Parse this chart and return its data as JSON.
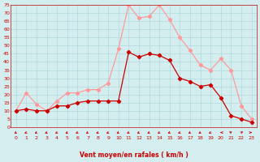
{
  "xlabel": "Vent moyen/en rafales ( km/h )",
  "hours": [
    0,
    1,
    2,
    3,
    4,
    5,
    6,
    7,
    8,
    9,
    10,
    11,
    12,
    13,
    14,
    15,
    16,
    17,
    18,
    19,
    20,
    21,
    22,
    23
  ],
  "wind_avg": [
    10,
    11,
    10,
    10,
    13,
    13,
    15,
    16,
    16,
    16,
    16,
    46,
    43,
    45,
    44,
    41,
    30,
    28,
    25,
    26,
    18,
    7,
    5,
    3
  ],
  "wind_gust": [
    10,
    21,
    14,
    10,
    16,
    21,
    21,
    23,
    23,
    27,
    48,
    75,
    67,
    68,
    75,
    66,
    55,
    47,
    38,
    35,
    42,
    35,
    13,
    5
  ],
  "wind_dirs": [
    225,
    225,
    225,
    225,
    225,
    225,
    225,
    225,
    225,
    225,
    225,
    225,
    225,
    225,
    225,
    225,
    225,
    225,
    225,
    225,
    270,
    315,
    45,
    90
  ],
  "ylim": [
    0,
    75
  ],
  "yticks": [
    0,
    5,
    10,
    15,
    20,
    25,
    30,
    35,
    40,
    45,
    50,
    55,
    60,
    65,
    70,
    75
  ],
  "bg_color": "#d4eef0",
  "grid_color": "#b0d8dc",
  "line_avg_color": "#cc0000",
  "line_gust_color": "#ff9999",
  "tick_label_color": "#cc0000",
  "xlabel_color": "#cc0000",
  "arrow_color": "#cc0000",
  "spine_color": "#cc0000"
}
